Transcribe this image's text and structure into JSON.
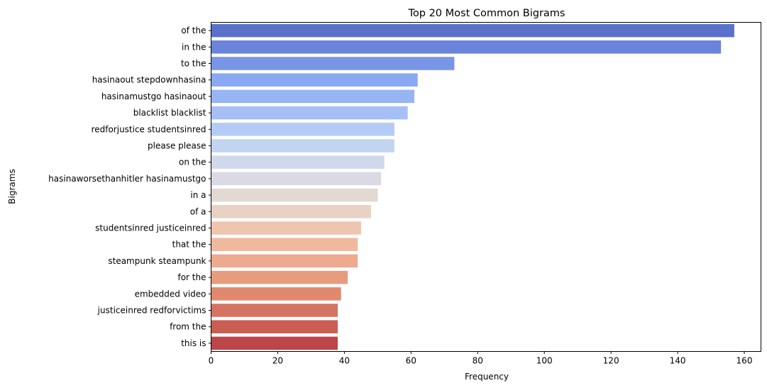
{
  "chart_data": {
    "type": "bar",
    "orientation": "horizontal",
    "title": "Top 20 Most Common Bigrams",
    "xlabel": "Frequency",
    "ylabel": "Bigrams",
    "xlim": [
      0,
      165
    ],
    "xticks": [
      0,
      20,
      40,
      60,
      80,
      100,
      120,
      140,
      160
    ],
    "grid": false,
    "palette": "coolwarm",
    "categories": [
      "of the",
      "in the",
      "to the",
      "hasinaout stepdownhasina",
      "hasinamustgo hasinaout",
      "blacklist blacklist",
      "redforjustice studentsinred",
      "please please",
      "on the",
      "hasinaworsethanhitler hasinamustgo",
      "in a",
      "of a",
      "studentsinred justiceinred",
      "that the",
      "steampunk steampunk",
      "for the",
      "embedded video",
      "justiceinred redforvictims",
      "from the",
      "this is"
    ],
    "values": [
      157,
      153,
      73,
      62,
      61,
      59,
      55,
      55,
      52,
      51,
      50,
      48,
      45,
      44,
      44,
      41,
      39,
      38,
      38,
      38
    ],
    "colors": [
      "#5a71cc",
      "#6a84dc",
      "#7996e6",
      "#89a9f3",
      "#97b4f3",
      "#a6c0f7",
      "#b4cbf6",
      "#c3d4f1",
      "#cfd9eb",
      "#dad9e4",
      "#e3d8d2",
      "#e8d2c4",
      "#efc5b0",
      "#f0b99e",
      "#edaa8e",
      "#e89c7e",
      "#e1896f",
      "#d67261",
      "#ca5e53",
      "#bc4548"
    ]
  }
}
